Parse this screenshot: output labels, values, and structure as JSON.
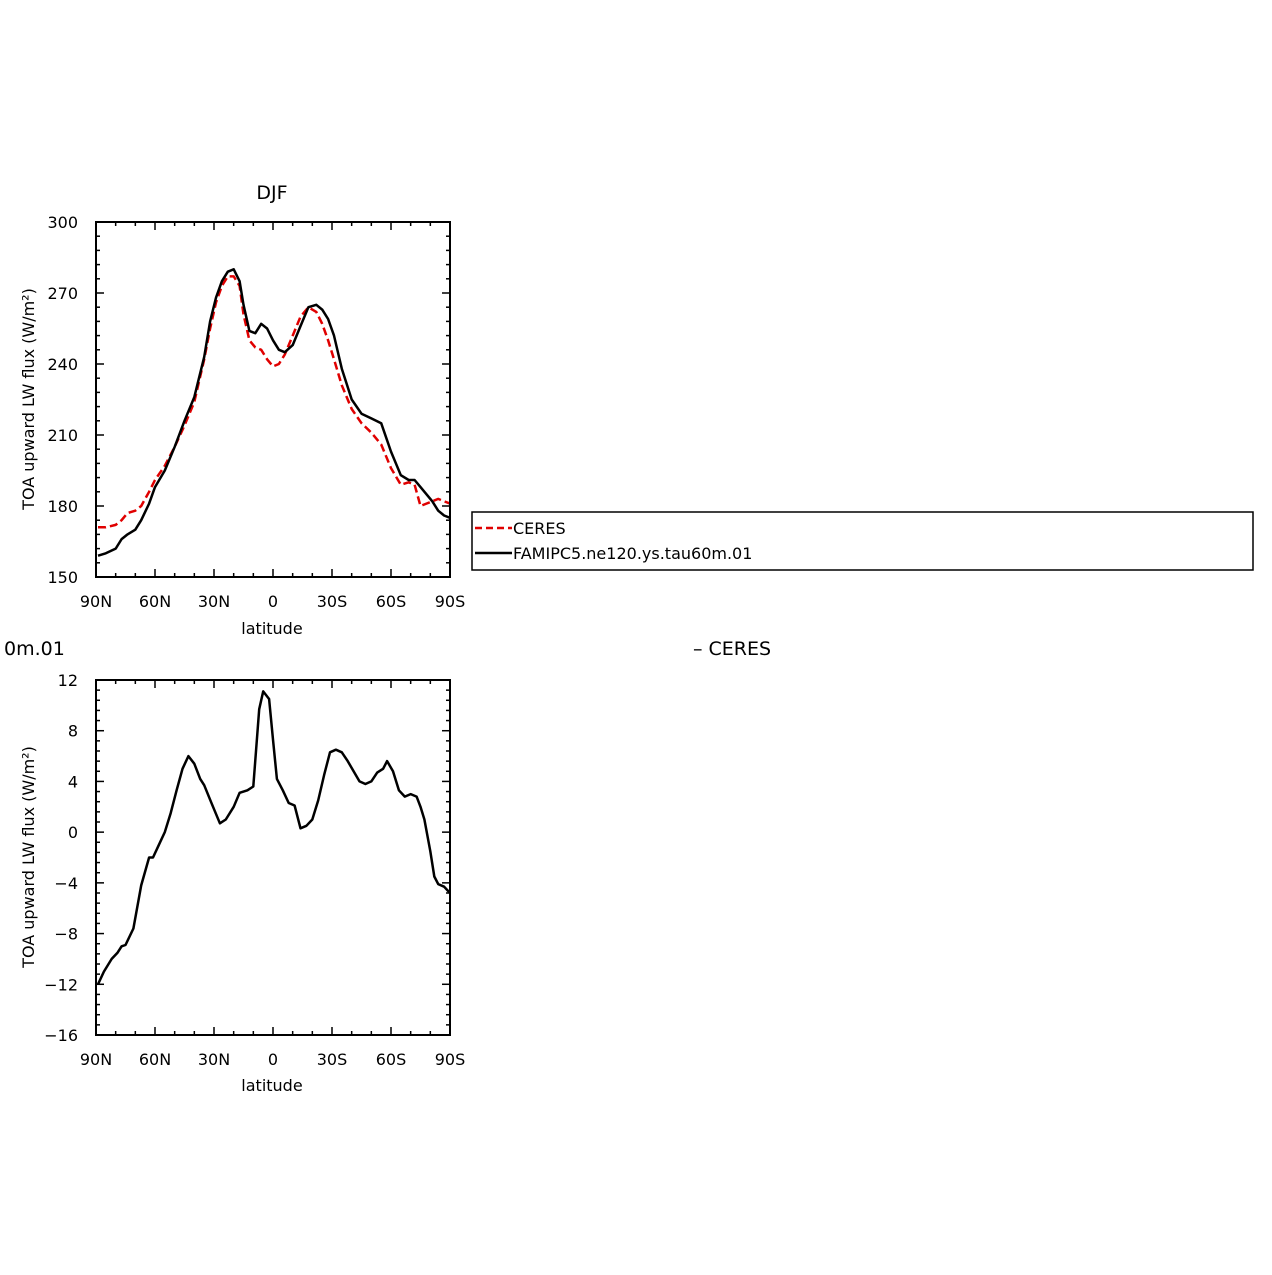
{
  "panels": {
    "top": {
      "title": "DJF",
      "ylabel": "TOA upward LW flux (W/m²)",
      "xlabel": "latitude"
    },
    "bottom": {
      "title_left": "0m.01",
      "title_right": "– CERES",
      "ylabel": "TOA upward LW flux (W/m²)",
      "xlabel": "latitude"
    }
  },
  "legend": {
    "entries": [
      {
        "label": "CERES",
        "color": "#e00000",
        "dash": true
      },
      {
        "label": "FAMIPC5.ne120.ys.tau60m.01",
        "color": "#000000",
        "dash": false
      }
    ]
  },
  "chart_data": [
    {
      "type": "line",
      "title": "DJF",
      "xlabel": "latitude",
      "ylabel": "TOA upward LW flux (W/m²)",
      "xlim": [
        90,
        -90
      ],
      "ylim": [
        150,
        300
      ],
      "yticks": [
        150,
        180,
        210,
        240,
        270,
        300
      ],
      "xticks": [
        90,
        60,
        30,
        0,
        -30,
        -60,
        -90
      ],
      "xtick_labels": [
        "90N",
        "60N",
        "30N",
        "0",
        "30S",
        "60S",
        "90S"
      ],
      "series": [
        {
          "name": "CERES",
          "color": "#e00000",
          "dash": true,
          "x": [
            89,
            85,
            80,
            77,
            74,
            70,
            67,
            63,
            60,
            55,
            50,
            45,
            40,
            35,
            32,
            29,
            26,
            23,
            20,
            17,
            15,
            12,
            9,
            6,
            3,
            0,
            -3,
            -6,
            -10,
            -14,
            -18,
            -22,
            -25,
            -28,
            -31,
            -35,
            -40,
            -45,
            -50,
            -55,
            -60,
            -65,
            -69,
            -72,
            -75,
            -78,
            -81,
            -84,
            -87,
            -90
          ],
          "values": [
            171,
            171,
            172,
            174,
            177,
            178,
            180,
            186,
            191,
            197,
            205,
            214,
            224,
            242,
            255,
            266,
            273,
            277,
            277,
            273,
            261,
            250,
            247,
            246,
            242,
            239,
            240,
            244,
            252,
            260,
            264,
            262,
            257,
            250,
            242,
            231,
            221,
            215,
            211,
            206,
            196,
            189,
            190,
            189,
            180,
            181,
            182,
            183,
            182,
            181
          ]
        },
        {
          "name": "FAMIPC5.ne120.ys.tau60m.01",
          "color": "#000000",
          "dash": false,
          "x": [
            89,
            85,
            80,
            77,
            74,
            70,
            67,
            63,
            60,
            55,
            50,
            45,
            40,
            35,
            32,
            29,
            26,
            23,
            20,
            17,
            15,
            12,
            9,
            6,
            3,
            0,
            -3,
            -6,
            -10,
            -14,
            -18,
            -22,
            -25,
            -28,
            -31,
            -35,
            -40,
            -45,
            -50,
            -55,
            -60,
            -65,
            -69,
            -72,
            -75,
            -78,
            -81,
            -84,
            -87,
            -90
          ],
          "values": [
            159,
            160,
            162,
            166,
            168,
            170,
            174,
            181,
            188,
            195,
            205,
            216,
            226,
            243,
            258,
            268,
            275,
            279,
            280,
            275,
            265,
            254,
            253,
            257,
            255,
            250,
            246,
            245,
            248,
            256,
            264,
            265,
            263,
            259,
            252,
            238,
            225,
            219,
            217,
            215,
            203,
            193,
            191,
            191,
            188,
            185,
            182,
            178,
            176,
            175
          ]
        }
      ]
    },
    {
      "type": "line",
      "title": "",
      "xlabel": "latitude",
      "ylabel": "TOA upward LW flux (W/m²)",
      "xlim": [
        90,
        -90
      ],
      "ylim": [
        -16,
        12
      ],
      "yticks": [
        -16,
        -12,
        -8,
        -4,
        0,
        4,
        8,
        12
      ],
      "xticks": [
        90,
        60,
        30,
        0,
        -30,
        -60,
        -90
      ],
      "xtick_labels": [
        "90N",
        "60N",
        "30N",
        "0",
        "30S",
        "60S",
        "90S"
      ],
      "series": [
        {
          "color": "#000000",
          "dash": false,
          "x": [
            89,
            86,
            82,
            79,
            77,
            75,
            71,
            67,
            63,
            61,
            58,
            55,
            52,
            49,
            46,
            43,
            40,
            37,
            35,
            31,
            27,
            24,
            20,
            17,
            13,
            10,
            7,
            5,
            2,
            0,
            -2,
            -5,
            -8,
            -11,
            -14,
            -17,
            -20,
            -23,
            -26,
            -29,
            -32,
            -35,
            -38,
            -41,
            -44,
            -47,
            -50,
            -53,
            -56,
            -58,
            -61,
            -64,
            -67,
            -70,
            -73,
            -75,
            -77,
            -80,
            -82,
            -84,
            -87,
            -90
          ],
          "values": [
            -12,
            -11,
            -10,
            -9.5,
            -9,
            -8.9,
            -7.6,
            -4.2,
            -2,
            -2,
            -1,
            0,
            1.5,
            3.3,
            5,
            6,
            5.4,
            4.2,
            3.7,
            2.2,
            0.7,
            1,
            2,
            3.1,
            3.3,
            3.6,
            9.7,
            11.1,
            10.5,
            7.3,
            4.2,
            3.3,
            2.3,
            2.1,
            0.3,
            0.5,
            1,
            2.5,
            4.5,
            6.3,
            6.5,
            6.3,
            5.6,
            4.8,
            4,
            3.8,
            4,
            4.7,
            5,
            5.6,
            4.8,
            3.3,
            2.8,
            3,
            2.8,
            2,
            1,
            -1.5,
            -3.5,
            -4.1,
            -4.3,
            -4.8
          ]
        }
      ]
    }
  ]
}
